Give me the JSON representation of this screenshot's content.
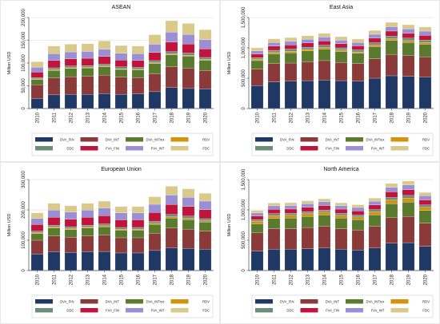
{
  "legend": {
    "items": [
      {
        "label": "DVA_FIN",
        "color": "#1f3864"
      },
      {
        "label": "DVA_INT",
        "color": "#8b3a3a"
      },
      {
        "label": "DVA_INTrex",
        "color": "#5a7a2e"
      },
      {
        "label": "RDV",
        "color": "#d4930f"
      },
      {
        "label": "DDC",
        "color": "#6b8e7a"
      },
      {
        "label": "FVA_FIN",
        "color": "#c0143c"
      },
      {
        "label": "FVA_INT",
        "color": "#9a8fd4"
      },
      {
        "label": "FDC",
        "color": "#d9c98a"
      }
    ]
  },
  "y_axis_label": "Million USD",
  "chart_data": [
    {
      "type": "bar",
      "stacked": true,
      "title": "ASEAN",
      "categories": [
        "2010",
        "2011",
        "2012",
        "2013",
        "2014",
        "2015",
        "2016",
        "2017",
        "2018",
        "2019",
        "2020"
      ],
      "ylim": [
        0,
        200000
      ],
      "yticks": [
        "0",
        "50,000",
        "100,000",
        "150,000",
        "200,000"
      ],
      "ytick_values": [
        0,
        50000,
        100000,
        150000,
        200000
      ],
      "ylabel": "Million USD",
      "grid": true,
      "legend": "bottom",
      "series": [
        {
          "name": "DVA_FIN",
          "values": [
            22000,
            30000,
            31000,
            31000,
            33000,
            31000,
            32000,
            37000,
            46000,
            44000,
            43000
          ]
        },
        {
          "name": "DVA_INT",
          "values": [
            30000,
            37000,
            39000,
            40000,
            40000,
            38000,
            36000,
            40000,
            46000,
            45000,
            41000
          ]
        },
        {
          "name": "DVA_INTrex",
          "values": [
            12000,
            17000,
            18000,
            18000,
            19000,
            17000,
            17000,
            22000,
            26000,
            26000,
            22000
          ]
        },
        {
          "name": "RDV",
          "values": [
            1000,
            1500,
            1500,
            1500,
            1500,
            1500,
            1500,
            1800,
            2000,
            2000,
            1800
          ]
        },
        {
          "name": "DDC",
          "values": [
            3000,
            4000,
            4000,
            4000,
            4000,
            4000,
            4000,
            4500,
            5000,
            5000,
            4500
          ]
        },
        {
          "name": "FVA_FIN",
          "values": [
            12000,
            16000,
            16000,
            16000,
            17000,
            15000,
            15000,
            18000,
            21000,
            20000,
            19000
          ]
        },
        {
          "name": "FVA_INT",
          "values": [
            11000,
            15000,
            15000,
            15000,
            16000,
            15000,
            15000,
            18000,
            22000,
            21000,
            20000
          ]
        },
        {
          "name": "FDC",
          "values": [
            12000,
            17000,
            17000,
            17000,
            18000,
            17000,
            17000,
            21000,
            25000,
            24000,
            22000
          ]
        }
      ]
    },
    {
      "type": "bar",
      "stacked": true,
      "title": "East Asia",
      "categories": [
        "2010",
        "2011",
        "2012",
        "2013",
        "2014",
        "2015",
        "2016",
        "2017",
        "2018",
        "2019",
        "2020"
      ],
      "ylim": [
        0,
        1500000
      ],
      "yticks": [
        "0",
        "500,000",
        "1,000,000",
        "1,500,000"
      ],
      "ytick_values": [
        0,
        500000,
        1000000,
        1500000
      ],
      "ylabel": "Million USD",
      "grid": true,
      "legend": "bottom",
      "series": [
        {
          "name": "DVA_FIN",
          "values": [
            380000,
            440000,
            450000,
            460000,
            470000,
            460000,
            450000,
            500000,
            540000,
            530000,
            520000
          ]
        },
        {
          "name": "DVA_INT",
          "values": [
            270000,
            300000,
            300000,
            310000,
            320000,
            300000,
            290000,
            320000,
            350000,
            340000,
            330000
          ]
        },
        {
          "name": "DVA_INTrex",
          "values": [
            140000,
            160000,
            170000,
            180000,
            190000,
            180000,
            170000,
            200000,
            230000,
            220000,
            210000
          ]
        },
        {
          "name": "RDV",
          "values": [
            20000,
            25000,
            25000,
            25000,
            27000,
            25000,
            24000,
            27000,
            30000,
            29000,
            28000
          ]
        },
        {
          "name": "DDC",
          "values": [
            30000,
            35000,
            35000,
            36000,
            37000,
            35000,
            34000,
            38000,
            42000,
            41000,
            40000
          ]
        },
        {
          "name": "FVA_FIN",
          "values": [
            60000,
            70000,
            70000,
            70000,
            72000,
            68000,
            65000,
            75000,
            85000,
            82000,
            80000
          ]
        },
        {
          "name": "FVA_INT",
          "values": [
            50000,
            60000,
            60000,
            60000,
            62000,
            58000,
            56000,
            64000,
            72000,
            70000,
            68000
          ]
        },
        {
          "name": "FDC",
          "values": [
            50000,
            60000,
            60000,
            60000,
            62000,
            58000,
            56000,
            64000,
            72000,
            70000,
            68000
          ]
        }
      ]
    },
    {
      "type": "bar",
      "stacked": true,
      "title": "European Union",
      "categories": [
        "2010",
        "2011",
        "2012",
        "2013",
        "2014",
        "2015",
        "2016",
        "2017",
        "2018",
        "2019",
        "2020"
      ],
      "ylim": [
        0,
        300000
      ],
      "yticks": [
        "0",
        "100,000",
        "200,000",
        "300,000"
      ],
      "ytick_values": [
        0,
        100000,
        200000,
        300000
      ],
      "ylabel": "Million USD",
      "grid": true,
      "legend": "bottom",
      "series": [
        {
          "name": "DVA_FIN",
          "values": [
            55000,
            62000,
            60000,
            62000,
            63000,
            58000,
            58000,
            66000,
            75000,
            73000,
            70000
          ]
        },
        {
          "name": "DVA_INT",
          "values": [
            45000,
            52000,
            50000,
            52000,
            54000,
            50000,
            50000,
            57000,
            65000,
            63000,
            60000
          ]
        },
        {
          "name": "DVA_INTrex",
          "values": [
            22000,
            26000,
            25000,
            26000,
            27000,
            25000,
            25000,
            29000,
            33000,
            32000,
            30000
          ]
        },
        {
          "name": "RDV",
          "values": [
            3000,
            3500,
            3500,
            3500,
            3600,
            3300,
            3300,
            3800,
            4300,
            4200,
            4000
          ]
        },
        {
          "name": "DDC",
          "values": [
            5000,
            6000,
            6000,
            6000,
            6200,
            5800,
            5800,
            6600,
            7500,
            7300,
            7000
          ]
        },
        {
          "name": "FVA_FIN",
          "values": [
            22000,
            26000,
            25000,
            26000,
            27000,
            25000,
            25000,
            29000,
            33000,
            32000,
            30000
          ]
        },
        {
          "name": "FVA_INT",
          "values": [
            20000,
            24000,
            23000,
            24000,
            25000,
            23000,
            23000,
            27000,
            31000,
            30000,
            28000
          ]
        },
        {
          "name": "FDC",
          "values": [
            18000,
            22000,
            21000,
            22000,
            23000,
            21000,
            21000,
            25000,
            29000,
            28000,
            26000
          ]
        }
      ]
    },
    {
      "type": "bar",
      "stacked": true,
      "title": "North America",
      "categories": [
        "2010",
        "2011",
        "2012",
        "2013",
        "2014",
        "2015",
        "2016",
        "2017",
        "2018",
        "2019",
        "2020"
      ],
      "ylim": [
        0,
        1500000
      ],
      "yticks": [
        "0",
        "500,000",
        "1,000,000",
        "1,500,000"
      ],
      "ytick_values": [
        0,
        500000,
        1000000,
        1500000
      ],
      "ylabel": "Million USD",
      "grid": true,
      "legend": "bottom",
      "series": [
        {
          "name": "DVA_FIN",
          "values": [
            320000,
            350000,
            350000,
            360000,
            370000,
            350000,
            340000,
            370000,
            450000,
            460000,
            400000
          ]
        },
        {
          "name": "DVA_INT",
          "values": [
            300000,
            340000,
            340000,
            350000,
            360000,
            340000,
            330000,
            360000,
            420000,
            430000,
            380000
          ]
        },
        {
          "name": "DVA_INTrex",
          "values": [
            150000,
            170000,
            175000,
            180000,
            185000,
            175000,
            170000,
            190000,
            230000,
            240000,
            210000
          ]
        },
        {
          "name": "RDV",
          "values": [
            40000,
            45000,
            45000,
            46000,
            47000,
            44000,
            43000,
            48000,
            60000,
            62000,
            52000
          ]
        },
        {
          "name": "DDC",
          "values": [
            30000,
            34000,
            34000,
            35000,
            36000,
            34000,
            33000,
            37000,
            45000,
            46000,
            40000
          ]
        },
        {
          "name": "FVA_FIN",
          "values": [
            60000,
            70000,
            70000,
            72000,
            74000,
            70000,
            68000,
            76000,
            92000,
            95000,
            82000
          ]
        },
        {
          "name": "FVA_INT",
          "values": [
            50000,
            58000,
            58000,
            60000,
            62000,
            58000,
            56000,
            63000,
            76000,
            78000,
            68000
          ]
        },
        {
          "name": "FDC",
          "values": [
            40000,
            46000,
            46000,
            48000,
            49000,
            46000,
            45000,
            50000,
            62000,
            64000,
            55000
          ]
        }
      ]
    }
  ]
}
